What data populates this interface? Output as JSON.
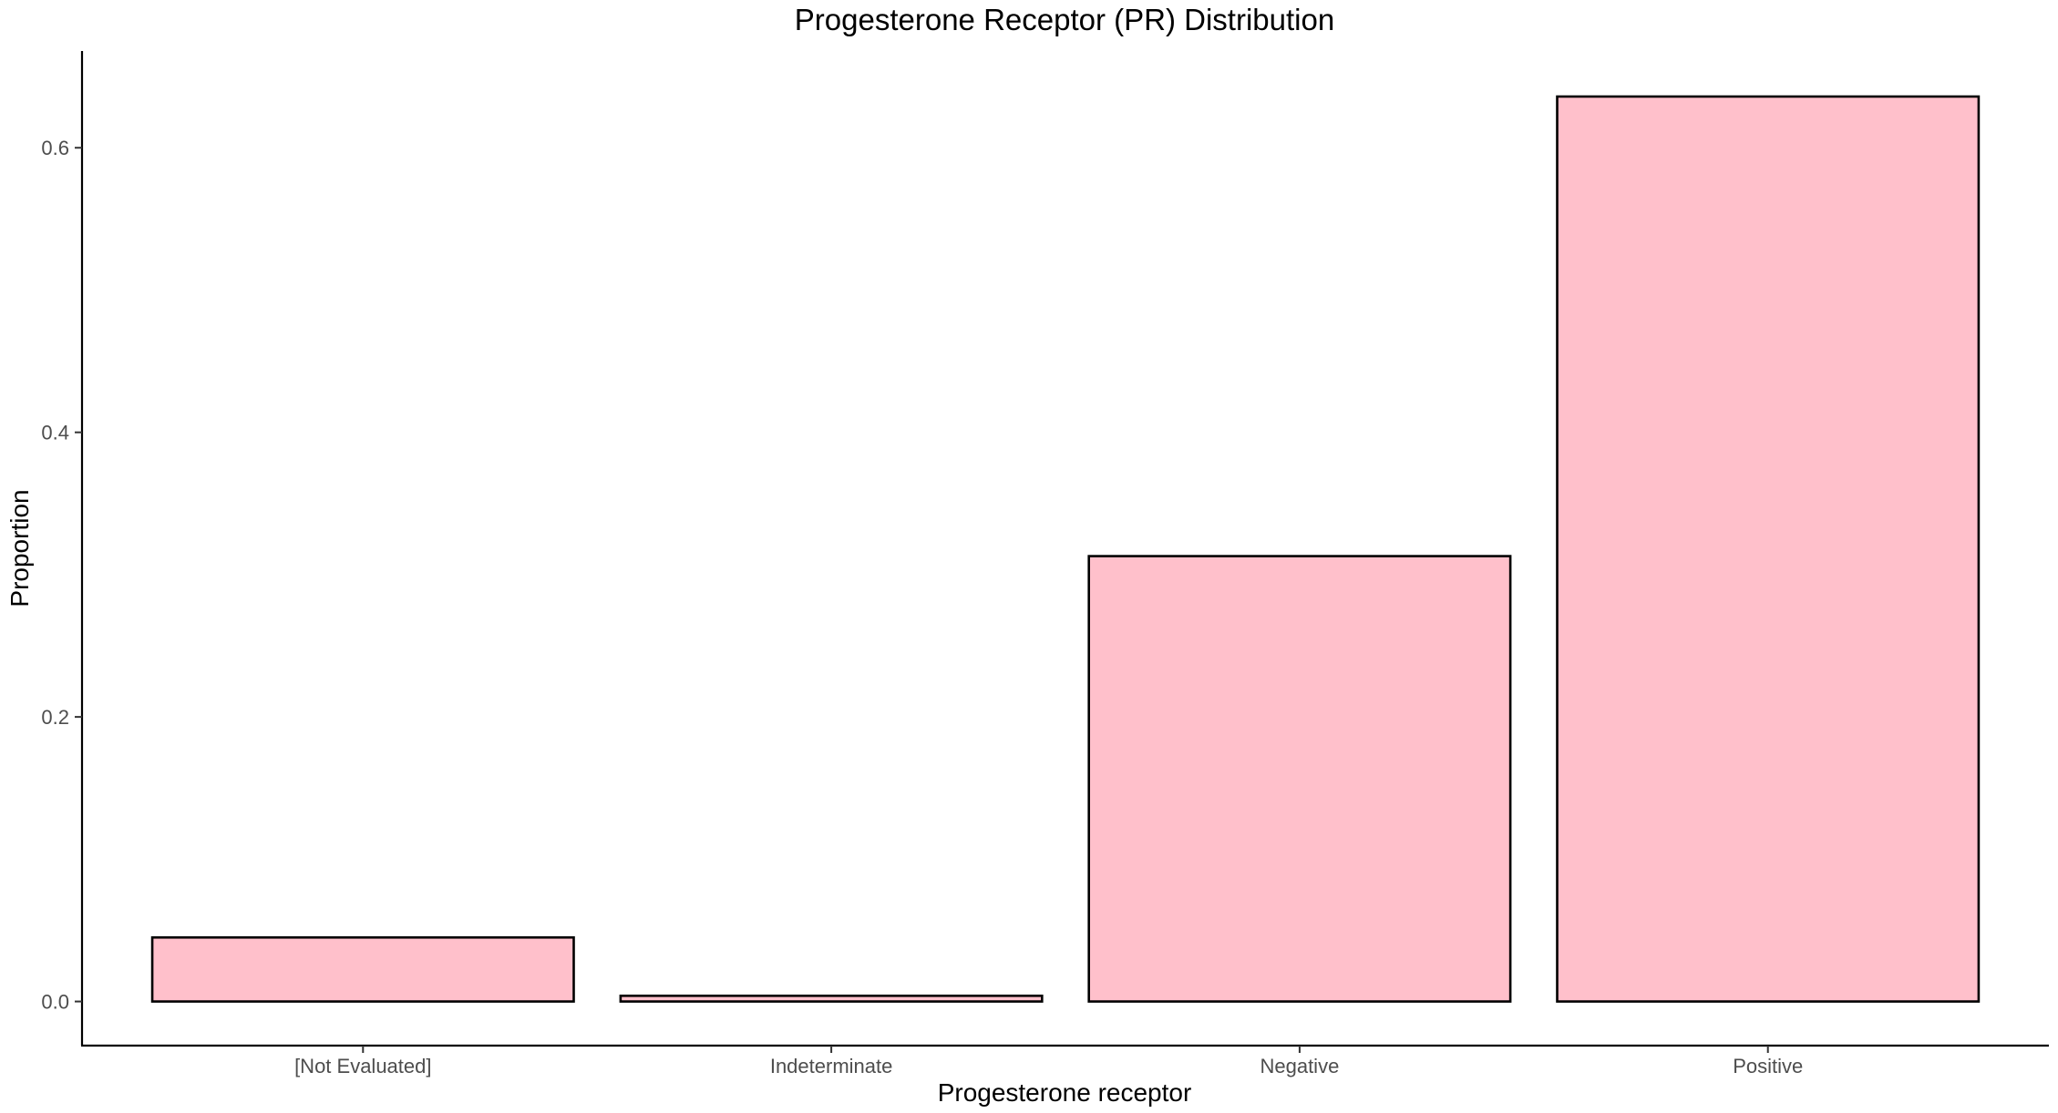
{
  "chart_data": {
    "type": "bar",
    "title": "Progesterone Receptor (PR) Distribution",
    "xlabel": "Progesterone receptor",
    "ylabel": "Proportion",
    "categories": [
      "[Not Evaluated]",
      "Indeterminate",
      "Negative",
      "Positive"
    ],
    "values": [
      0.045,
      0.004,
      0.313,
      0.636
    ],
    "ylim": [
      -0.031,
      0.668
    ],
    "yticks": [
      0.0,
      0.2,
      0.4,
      0.6
    ],
    "ytick_labels": [
      "0.0",
      "0.2",
      "0.4",
      "0.6"
    ],
    "bar_fill": "#ffc0cb",
    "bar_outline": "#000000",
    "grid": false,
    "legend": "none"
  }
}
